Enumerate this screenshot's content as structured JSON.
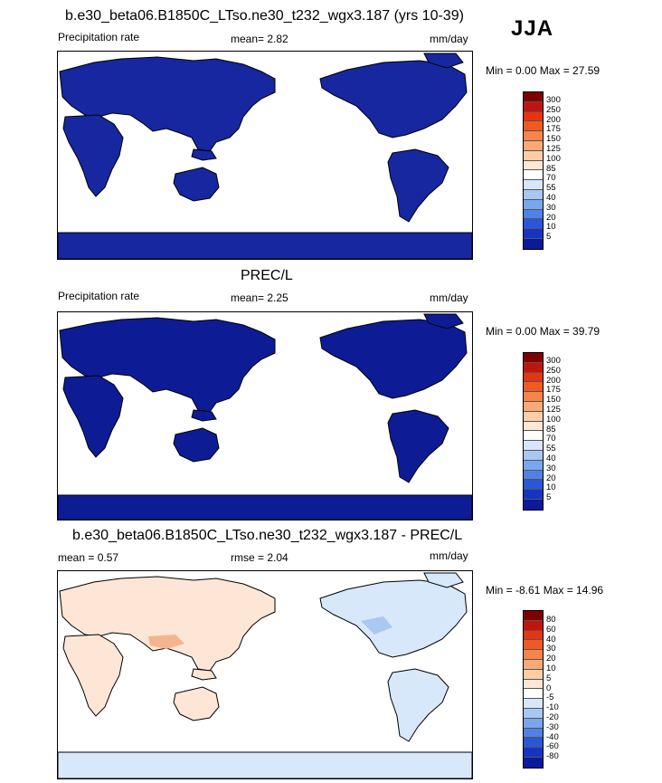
{
  "season": "JJA",
  "panels": [
    {
      "title": "b.e30_beta06.B1850C_LTso.ne30_t232_wgx3.187 (yrs 10-39)",
      "left_label": "Precipitation rate",
      "mid_label": "mean=   2.82",
      "right_label": "mm/day",
      "minmax": "Min =   0.00 Max =  27.59",
      "levels": [
        "300",
        "250",
        "200",
        "175",
        "150",
        "125",
        "100",
        "85",
        "70",
        "55",
        "40",
        "30",
        "20",
        "10",
        "5"
      ],
      "colors": [
        "#7f0000",
        "#c0150e",
        "#e63310",
        "#f05a22",
        "#f8844a",
        "#fba878",
        "#fdcda8",
        "#fbe8d6",
        "#ffffff",
        "#d6e6fb",
        "#a8c8f4",
        "#7aa6ee",
        "#4f82e6",
        "#2a56d8",
        "#1534c4",
        "#0a1a9a"
      ]
    },
    {
      "title": "PREC/L",
      "left_label": "Precipitation rate",
      "mid_label": "mean=   2.25",
      "right_label": "mm/day",
      "minmax": "Min =   0.00 Max =  39.79",
      "levels": [
        "300",
        "250",
        "200",
        "175",
        "150",
        "125",
        "100",
        "85",
        "70",
        "55",
        "40",
        "30",
        "20",
        "10",
        "5"
      ],
      "colors": [
        "#7f0000",
        "#c0150e",
        "#e63310",
        "#f05a22",
        "#f8844a",
        "#fba878",
        "#fdcda8",
        "#fbe8d6",
        "#ffffff",
        "#d6e6fb",
        "#a8c8f4",
        "#7aa6ee",
        "#4f82e6",
        "#2a56d8",
        "#1534c4",
        "#0a1a9a"
      ]
    },
    {
      "title": "b.e30_beta06.B1850C_LTso.ne30_t232_wgx3.187 - PREC/L",
      "left_label": "mean =   0.57",
      "mid_label": "rmse =   2.04",
      "right_label": "mm/day",
      "minmax": "Min =  -8.61 Max =  14.96",
      "levels": [
        "80",
        "60",
        "40",
        "30",
        "20",
        "10",
        "5",
        "0",
        "-5",
        "-10",
        "-20",
        "-30",
        "-40",
        "-60",
        "-80"
      ],
      "colors": [
        "#7f0000",
        "#c0150e",
        "#e63310",
        "#f05a22",
        "#f8844a",
        "#fba878",
        "#fdcda8",
        "#fbe8d6",
        "#ffffff",
        "#d6e6fb",
        "#a8c8f4",
        "#7aa6ee",
        "#4f82e6",
        "#2a56d8",
        "#1534c4",
        "#0a1a9a"
      ]
    }
  ]
}
